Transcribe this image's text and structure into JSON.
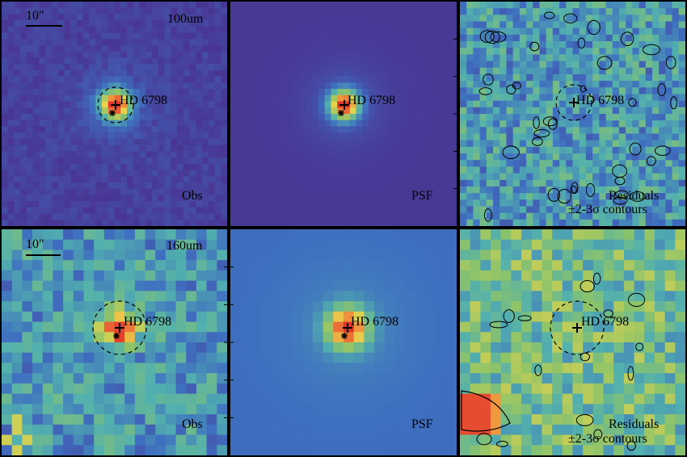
{
  "figure": {
    "panels": [
      {
        "id": "p100-obs",
        "wavelength": "100um",
        "scale": "10\"",
        "object": "HD 6798",
        "label": "Obs"
      },
      {
        "id": "p100-psf",
        "object": "HD 6798",
        "label": "PSF"
      },
      {
        "id": "p100-res",
        "object": "HD 6798",
        "label": "Residuals",
        "contours": "±2-3σ contours"
      },
      {
        "id": "p160-obs",
        "wavelength": "160um",
        "scale": "10\"",
        "object": "HD 6798",
        "label": "Obs"
      },
      {
        "id": "p160-psf",
        "object": "HD 6798",
        "label": "PSF"
      },
      {
        "id": "p160-res",
        "object": "HD 6798",
        "label": "Residuals",
        "contours": "±2-3σ contours"
      }
    ],
    "colors": {
      "deep_purple": "#4a2d8c",
      "blue": "#3f6fc0",
      "teal": "#52b0ae",
      "green": "#8cc36a",
      "yellow": "#e8d44c",
      "orange": "#f08a3c",
      "red": "#e2322a"
    },
    "markers": {
      "source": "+",
      "star": "*",
      "aperture": "dashed-circle"
    }
  }
}
